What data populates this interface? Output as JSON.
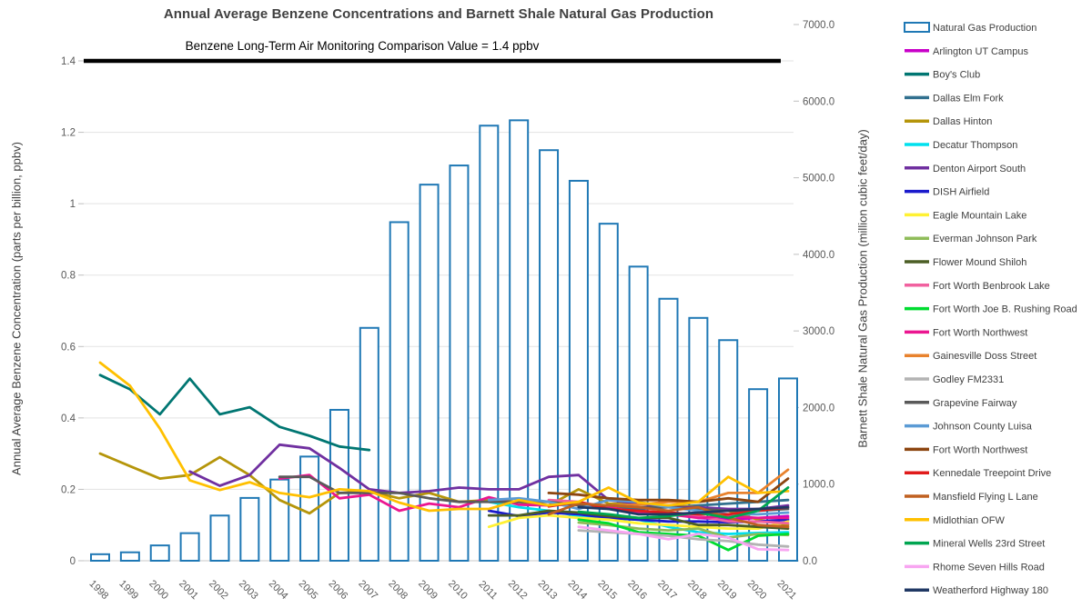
{
  "page": {
    "background": "#FFFFFF"
  },
  "chart_data": {
    "type": "combo-bar-line",
    "title": "Annual Average Benzene Concentrations and Barnett Shale Natural Gas Production",
    "annotation": "Benzene Long-Term Air Monitoring Comparison Value = 1.4 ppbv",
    "reference_line": {
      "value": 1.4,
      "color": "#000000"
    },
    "grid": "horizontal",
    "legend_position": "right",
    "left_axis": {
      "label": "Annual Average Benzene Concentration (parts per billion, ppbv)",
      "min": 0,
      "max": 1.4,
      "tick_step": 0.2,
      "tick_labels": [
        "0",
        "0.2",
        "0.4",
        "0.6",
        "0.8",
        "1",
        "1.2",
        "1.4"
      ]
    },
    "right_axis": {
      "label": "Barnett Shale Natural Gas Production (million cubic feet/day)",
      "min": 0,
      "max": 7000,
      "tick_step": 1000,
      "tick_labels": [
        "0.0",
        "1000.0",
        "2000.0",
        "3000.0",
        "4000.0",
        "5000.0",
        "6000.0",
        "7000.0"
      ]
    },
    "years": [
      1998,
      1999,
      2000,
      2001,
      2002,
      2003,
      2004,
      2005,
      2006,
      2007,
      2008,
      2009,
      2010,
      2011,
      2012,
      2013,
      2014,
      2015,
      2016,
      2017,
      2018,
      2019,
      2020,
      2021
    ],
    "bars": {
      "name": "Natural Gas Production",
      "color": "#1F78B5",
      "axis": "right",
      "values": [
        85,
        110,
        200,
        360,
        590,
        820,
        1060,
        1360,
        1970,
        3040,
        4420,
        4910,
        5160,
        5680,
        5750,
        5360,
        4960,
        4400,
        3840,
        3420,
        3170,
        2880,
        2240,
        2380
      ]
    },
    "series": [
      {
        "name": "Arlington UT Campus",
        "color": "#C800C8",
        "values": [
          null,
          null,
          null,
          null,
          null,
          null,
          null,
          null,
          null,
          null,
          null,
          null,
          null,
          null,
          null,
          null,
          null,
          null,
          null,
          null,
          0.12,
          0.115,
          0.12,
          0.125
        ]
      },
      {
        "name": "Boy's Club",
        "color": "#007672",
        "values": [
          0.52,
          0.48,
          0.41,
          0.51,
          0.41,
          0.43,
          0.375,
          0.35,
          0.32,
          0.31,
          null,
          null,
          null,
          null,
          null,
          null,
          null,
          null,
          null,
          null,
          null,
          null,
          null,
          null
        ]
      },
      {
        "name": "Dallas Elm Fork",
        "color": "#31708F",
        "values": [
          null,
          null,
          null,
          null,
          null,
          null,
          null,
          null,
          null,
          null,
          null,
          null,
          null,
          null,
          null,
          null,
          0.16,
          0.15,
          0.145,
          0.15,
          0.155,
          0.16,
          0.165,
          0.17
        ]
      },
      {
        "name": "Dallas Hinton",
        "color": "#B5950A",
        "values": [
          0.3,
          0.265,
          0.23,
          0.24,
          0.29,
          0.24,
          0.17,
          0.133,
          0.19,
          0.195,
          0.175,
          0.19,
          0.165,
          0.17,
          0.165,
          0.155,
          0.2,
          0.16,
          0.158,
          0.155,
          0.15,
          0.14,
          0.115,
          0.1
        ]
      },
      {
        "name": "Decatur Thompson",
        "color": "#00E0EE",
        "values": [
          null,
          null,
          null,
          null,
          null,
          null,
          null,
          null,
          null,
          null,
          null,
          null,
          null,
          0.165,
          0.15,
          0.14,
          0.125,
          0.12,
          0.115,
          0.095,
          0.08,
          0.075,
          0.078,
          0.08
        ]
      },
      {
        "name": "Denton Airport South",
        "color": "#7030A0",
        "values": [
          null,
          null,
          null,
          0.25,
          0.21,
          0.24,
          0.325,
          0.315,
          0.26,
          0.2,
          0.19,
          0.195,
          0.205,
          0.2,
          0.2,
          0.235,
          0.24,
          0.17,
          0.16,
          0.15,
          0.15,
          0.145,
          0.145,
          0.155
        ]
      },
      {
        "name": "DISH Airfield",
        "color": "#1A1ACC",
        "values": [
          null,
          null,
          null,
          null,
          null,
          null,
          null,
          null,
          null,
          null,
          null,
          null,
          null,
          0.14,
          0.125,
          0.135,
          0.13,
          0.12,
          0.115,
          0.11,
          0.11,
          0.108,
          0.11,
          0.115
        ]
      },
      {
        "name": "Eagle Mountain Lake",
        "color": "#FFF133",
        "values": [
          null,
          null,
          null,
          null,
          null,
          null,
          null,
          null,
          null,
          null,
          null,
          null,
          null,
          0.095,
          0.12,
          0.127,
          0.12,
          0.115,
          0.105,
          0.1,
          0.095,
          0.09,
          0.09,
          0.11
        ]
      },
      {
        "name": "Everman Johnson Park",
        "color": "#8FBC59",
        "values": [
          null,
          null,
          null,
          null,
          null,
          null,
          null,
          null,
          null,
          null,
          null,
          null,
          null,
          null,
          null,
          null,
          0.107,
          0.1,
          0.09,
          0.085,
          0.09,
          0.065,
          0.075,
          0.072
        ]
      },
      {
        "name": "Flower Mound Shiloh",
        "color": "#4C5E25",
        "values": [
          null,
          null,
          null,
          null,
          null,
          null,
          null,
          null,
          null,
          null,
          null,
          null,
          null,
          0.127,
          0.127,
          0.14,
          0.135,
          0.125,
          0.12,
          0.12,
          0.1,
          0.1,
          0.095,
          0.09
        ]
      },
      {
        "name": "Fort Worth Benbrook Lake",
        "color": "#F1619F",
        "values": [
          null,
          null,
          null,
          null,
          null,
          null,
          null,
          null,
          null,
          null,
          null,
          null,
          null,
          null,
          null,
          0.17,
          0.165,
          0.15,
          0.135,
          0.13,
          0.125,
          0.11,
          0.11,
          0.105
        ]
      },
      {
        "name": "Fort Worth Joe B. Rushing Road",
        "color": "#00DC30",
        "values": [
          null,
          null,
          null,
          null,
          null,
          null,
          null,
          null,
          null,
          null,
          null,
          null,
          null,
          null,
          null,
          null,
          0.115,
          0.105,
          0.08,
          0.075,
          0.07,
          0.03,
          0.07,
          0.075
        ]
      },
      {
        "name": "Fort Worth Northwest",
        "color": "#EB1690",
        "values": [
          null,
          null,
          null,
          null,
          null,
          null,
          0.23,
          0.24,
          0.175,
          0.185,
          0.14,
          0.16,
          0.15,
          0.178,
          0.157,
          0.155,
          0.16,
          0.15,
          0.135,
          0.13,
          0.12,
          0.125,
          0.12,
          0.12
        ]
      },
      {
        "name": "Gainesville Doss Street",
        "color": "#E8822D",
        "values": [
          null,
          null,
          null,
          null,
          null,
          null,
          null,
          null,
          null,
          null,
          null,
          null,
          null,
          null,
          null,
          null,
          0.15,
          0.155,
          0.157,
          0.165,
          0.165,
          0.19,
          0.19,
          0.255
        ]
      },
      {
        "name": "Godley FM2331",
        "color": "#B3B3B3",
        "values": [
          null,
          null,
          null,
          null,
          null,
          null,
          null,
          null,
          null,
          null,
          null,
          null,
          null,
          null,
          null,
          null,
          0.085,
          0.08,
          0.075,
          0.07,
          0.06,
          0.055,
          0.045,
          0.04
        ]
      },
      {
        "name": "Grapevine Fairway",
        "color": "#5A5A5A",
        "values": [
          null,
          null,
          null,
          null,
          null,
          null,
          0.235,
          0.235,
          0.19,
          0.19,
          0.19,
          0.175,
          0.165,
          0.165,
          0.165,
          0.165,
          0.155,
          0.155,
          0.15,
          0.15,
          0.145,
          0.14,
          0.14,
          0.145
        ]
      },
      {
        "name": "Johnson County Luisa",
        "color": "#5B9BD5",
        "values": [
          null,
          null,
          null,
          null,
          null,
          null,
          null,
          null,
          null,
          null,
          null,
          null,
          null,
          0.17,
          0.175,
          0.165,
          0.145,
          0.17,
          0.165,
          0.15,
          0.14,
          0.13,
          0.13,
          0.135
        ]
      },
      {
        "name": "Fort Worth Northwest",
        "color": "#8C4510",
        "values": [
          null,
          null,
          null,
          null,
          null,
          null,
          null,
          null,
          null,
          null,
          null,
          null,
          null,
          null,
          null,
          0.19,
          0.185,
          0.175,
          0.17,
          0.17,
          0.165,
          0.175,
          0.165,
          0.23
        ]
      },
      {
        "name": "Kennedale Treepoint Drive",
        "color": "#E01B1B",
        "values": [
          null,
          null,
          null,
          null,
          null,
          null,
          null,
          null,
          null,
          null,
          null,
          null,
          null,
          null,
          null,
          0.152,
          0.165,
          0.145,
          0.14,
          0.135,
          0.13,
          0.13,
          0.14,
          0.15
        ]
      },
      {
        "name": "Mansfield Flying L Lane",
        "color": "#C06020",
        "values": [
          null,
          null,
          null,
          null,
          null,
          null,
          null,
          null,
          null,
          null,
          null,
          null,
          null,
          null,
          null,
          0.13,
          0.16,
          0.155,
          0.15,
          0.14,
          0.15,
          0.12,
          0.1,
          0.095
        ]
      },
      {
        "name": "Midlothian OFW",
        "color": "#FFC000",
        "values": [
          0.555,
          0.49,
          0.37,
          0.225,
          0.198,
          0.22,
          0.19,
          0.178,
          0.2,
          0.195,
          0.163,
          0.14,
          0.145,
          0.145,
          0.17,
          0.155,
          0.165,
          0.205,
          0.163,
          0.155,
          0.165,
          0.235,
          0.19,
          0.195
        ]
      },
      {
        "name": "Mineral Wells 23rd Street",
        "color": "#00A550",
        "values": [
          null,
          null,
          null,
          null,
          null,
          null,
          null,
          null,
          null,
          null,
          null,
          null,
          null,
          null,
          null,
          null,
          0.137,
          0.13,
          0.12,
          0.125,
          0.135,
          0.12,
          0.14,
          0.205
        ]
      },
      {
        "name": "Rhome Seven Hills Road",
        "color": "#F8A5F1",
        "values": [
          null,
          null,
          null,
          null,
          null,
          null,
          null,
          null,
          null,
          null,
          null,
          null,
          null,
          null,
          null,
          null,
          0.095,
          0.085,
          0.075,
          0.06,
          0.075,
          0.065,
          0.032,
          0.03
        ]
      },
      {
        "name": "Weatherford Highway 180",
        "color": "#203864",
        "values": [
          null,
          null,
          null,
          null,
          null,
          null,
          null,
          null,
          null,
          null,
          null,
          null,
          null,
          null,
          null,
          null,
          0.15,
          0.145,
          0.13,
          0.13,
          0.135,
          0.14,
          0.145,
          0.15
        ]
      }
    ]
  }
}
